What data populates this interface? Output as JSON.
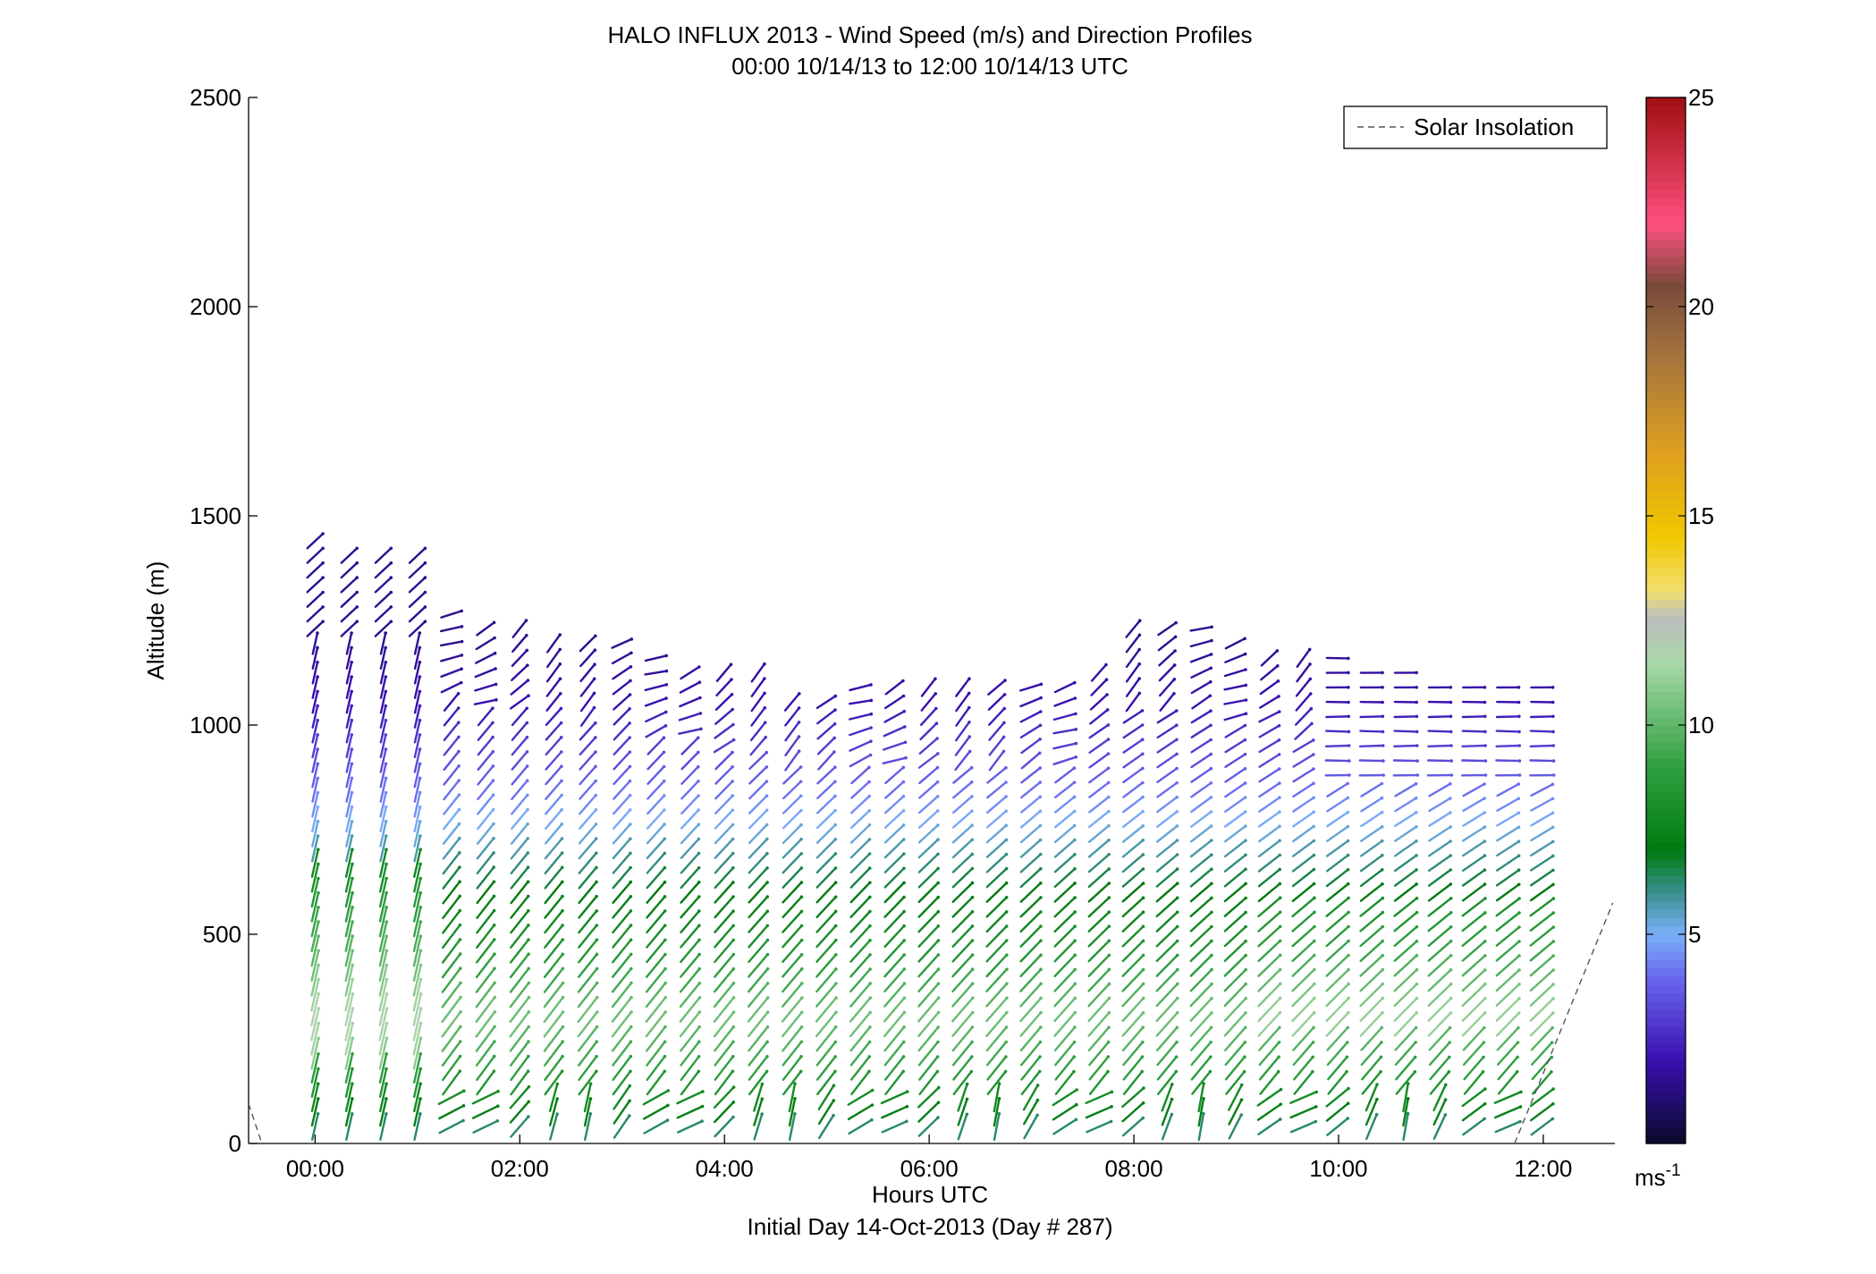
{
  "chart_data": {
    "type": "scatter",
    "subtype": "wind-barb-profiles",
    "title": "HALO INFLUX 2013 - Wind Speed (m/s) and Direction Profiles",
    "subtitle": "00:00 10/14/13 to 12:00 10/14/13  UTC",
    "xlabel": "Hours UTC",
    "xlabel2": "Initial Day 14-Oct-2013 (Day # 287)",
    "ylabel": "Altitude (m)",
    "xlim": [
      -0.65,
      12.7
    ],
    "ylim": [
      0,
      2500
    ],
    "x_ticks": [
      {
        "value": 0,
        "label": "00:00"
      },
      {
        "value": 2,
        "label": "02:00"
      },
      {
        "value": 4,
        "label": "04:00"
      },
      {
        "value": 6,
        "label": "06:00"
      },
      {
        "value": 8,
        "label": "08:00"
      },
      {
        "value": 10,
        "label": "10:00"
      },
      {
        "value": 12,
        "label": "12:00"
      }
    ],
    "y_ticks": [
      {
        "value": 0,
        "label": "0"
      },
      {
        "value": 500,
        "label": "500"
      },
      {
        "value": 1000,
        "label": "1000"
      },
      {
        "value": 1500,
        "label": "1500"
      },
      {
        "value": 2000,
        "label": "2000"
      },
      {
        "value": 2500,
        "label": "2500"
      }
    ],
    "colorbar": {
      "range": [
        0,
        25
      ],
      "ticks": [
        {
          "value": 5,
          "label": "5"
        },
        {
          "value": 10,
          "label": "10"
        },
        {
          "value": 15,
          "label": "15"
        },
        {
          "value": 20,
          "label": "20"
        },
        {
          "value": 25,
          "label": "25"
        }
      ],
      "unit_base": "ms",
      "unit_exp": "-1",
      "stops": [
        {
          "v": 0,
          "c": "#0a0a2a"
        },
        {
          "v": 2,
          "c": "#3a0fb0"
        },
        {
          "v": 4,
          "c": "#6a6af0"
        },
        {
          "v": 5,
          "c": "#7ab0f8"
        },
        {
          "v": 6,
          "c": "#3a9090"
        },
        {
          "v": 7,
          "c": "#007a10"
        },
        {
          "v": 9,
          "c": "#2fa040"
        },
        {
          "v": 11.5,
          "c": "#a8d8a8"
        },
        {
          "v": 12.6,
          "c": "#bdbdbd"
        },
        {
          "v": 13.2,
          "c": "#f2e070"
        },
        {
          "v": 14.5,
          "c": "#f0c800"
        },
        {
          "v": 16.5,
          "c": "#e0a020"
        },
        {
          "v": 19,
          "c": "#a07040"
        },
        {
          "v": 20.5,
          "c": "#7a4a3a"
        },
        {
          "v": 22,
          "c": "#ff5080"
        },
        {
          "v": 25,
          "c": "#a01010"
        }
      ]
    },
    "legend": {
      "label": "Solar Insolation",
      "style": "dashed",
      "color": "#555555",
      "placement": "top-right"
    },
    "solar_insolation": {
      "note": "dashed line rising at both ends of the window",
      "left_segment": [
        [
          -0.65,
          95
        ],
        [
          -0.52,
          0
        ]
      ],
      "right_segment": [
        [
          11.72,
          0
        ],
        [
          12.68,
          575
        ]
      ]
    },
    "profiles_summary": {
      "columns": "profiles every ~0.33 h from ~00:00 to ~12:10 UTC",
      "data_top_m": [
        [
          0.0,
          1440
        ],
        [
          0.5,
          1420
        ],
        [
          1.0,
          1420
        ],
        [
          1.3,
          1280
        ],
        [
          1.6,
          1240
        ],
        [
          2.2,
          1230
        ],
        [
          3.0,
          1200
        ],
        [
          3.6,
          1160
        ],
        [
          4.3,
          1130
        ],
        [
          4.6,
          1080
        ],
        [
          5.2,
          1090
        ],
        [
          6.0,
          1110
        ],
        [
          6.8,
          1110
        ],
        [
          7.5,
          1110
        ],
        [
          8.0,
          1250
        ],
        [
          8.6,
          1250
        ],
        [
          9.2,
          1200
        ],
        [
          10.0,
          1160
        ],
        [
          10.6,
          1140
        ],
        [
          11.2,
          1110
        ],
        [
          11.8,
          1100
        ],
        [
          12.1,
          1100
        ]
      ],
      "speed_by_altitude_m": [
        [
          0,
          5
        ],
        [
          60,
          7
        ],
        [
          150,
          8.5
        ],
        [
          300,
          10.5
        ],
        [
          450,
          8.5
        ],
        [
          600,
          7
        ],
        [
          750,
          5.2
        ],
        [
          850,
          4
        ],
        [
          950,
          3
        ],
        [
          1050,
          2
        ],
        [
          1200,
          1.5
        ]
      ],
      "direction": "arrows mostly point up-right at low and middle levels, becoming near-horizontal at the top after 10:00"
    }
  }
}
